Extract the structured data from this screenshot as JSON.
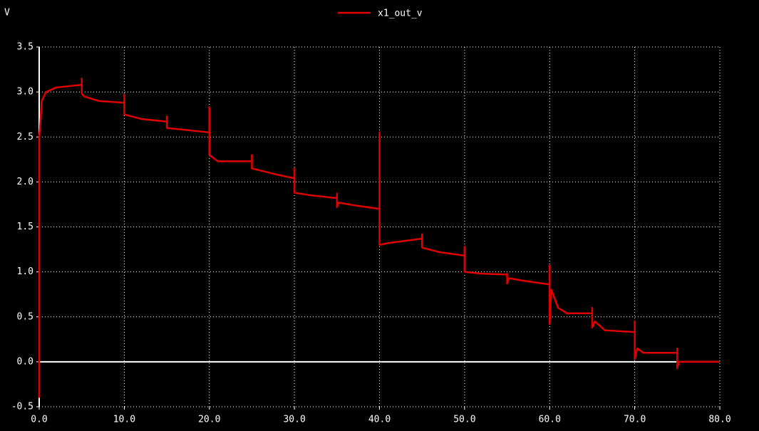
{
  "chart_data": {
    "type": "line",
    "y_label": "V",
    "x": [
      0,
      0,
      0.1,
      0.3,
      0.8,
      2,
      5,
      5,
      5,
      5.3,
      7,
      10,
      10,
      10,
      12,
      15,
      15,
      15,
      17,
      20,
      20,
      20,
      21,
      25,
      25,
      25,
      28,
      30,
      30,
      30,
      32,
      35,
      35,
      35,
      35.2,
      37,
      40,
      40,
      40,
      41,
      45,
      45,
      45,
      47,
      50,
      50,
      50,
      52,
      55,
      55,
      55,
      55.2,
      57,
      60,
      60,
      60,
      60.2,
      61,
      62,
      65,
      65,
      65,
      65.3,
      66.5,
      70,
      70,
      70,
      70.3,
      71,
      75,
      75,
      75,
      75.2,
      80
    ],
    "series": [
      {
        "name": "x1_out_v",
        "color": "#e00000",
        "values": [
          -0.4,
          2.5,
          2.6,
          2.9,
          3.0,
          3.05,
          3.08,
          3.15,
          2.98,
          2.95,
          2.9,
          2.88,
          2.97,
          2.75,
          2.7,
          2.67,
          2.73,
          2.6,
          2.58,
          2.55,
          2.83,
          2.3,
          2.23,
          2.23,
          2.3,
          2.15,
          2.08,
          2.04,
          2.15,
          1.88,
          1.85,
          1.82,
          1.87,
          1.72,
          1.77,
          1.74,
          1.7,
          2.55,
          1.3,
          1.32,
          1.37,
          1.42,
          1.27,
          1.22,
          1.18,
          1.28,
          1.0,
          0.98,
          0.97,
          0.98,
          0.87,
          0.93,
          0.9,
          0.86,
          1.07,
          0.42,
          0.8,
          0.6,
          0.54,
          0.54,
          0.6,
          0.38,
          0.45,
          0.35,
          0.33,
          0.45,
          0.03,
          0.15,
          0.1,
          0.1,
          0.15,
          -0.07,
          0.0,
          0.0
        ]
      }
    ],
    "xlim": [
      0,
      80
    ],
    "ylim": [
      -0.5,
      3.5
    ],
    "xticks": [
      {
        "value": 0,
        "label": "0.0"
      },
      {
        "value": 10,
        "label": "10.0"
      },
      {
        "value": 20,
        "label": "20.0"
      },
      {
        "value": 30,
        "label": "30.0"
      },
      {
        "value": 40,
        "label": "40.0"
      },
      {
        "value": 50,
        "label": "50.0"
      },
      {
        "value": 60,
        "label": "60.0"
      },
      {
        "value": 70,
        "label": "70.0"
      },
      {
        "value": 80,
        "label": "80.0"
      }
    ],
    "yticks": [
      -0.5,
      {
        "value": 0,
        "label": "0.0"
      },
      0.5,
      {
        "value": 1,
        "label": "1.0"
      },
      1.5,
      {
        "value": 2,
        "label": "2.0"
      },
      2.5,
      {
        "value": 3,
        "label": "3.0"
      },
      3.5
    ],
    "grid": true
  }
}
